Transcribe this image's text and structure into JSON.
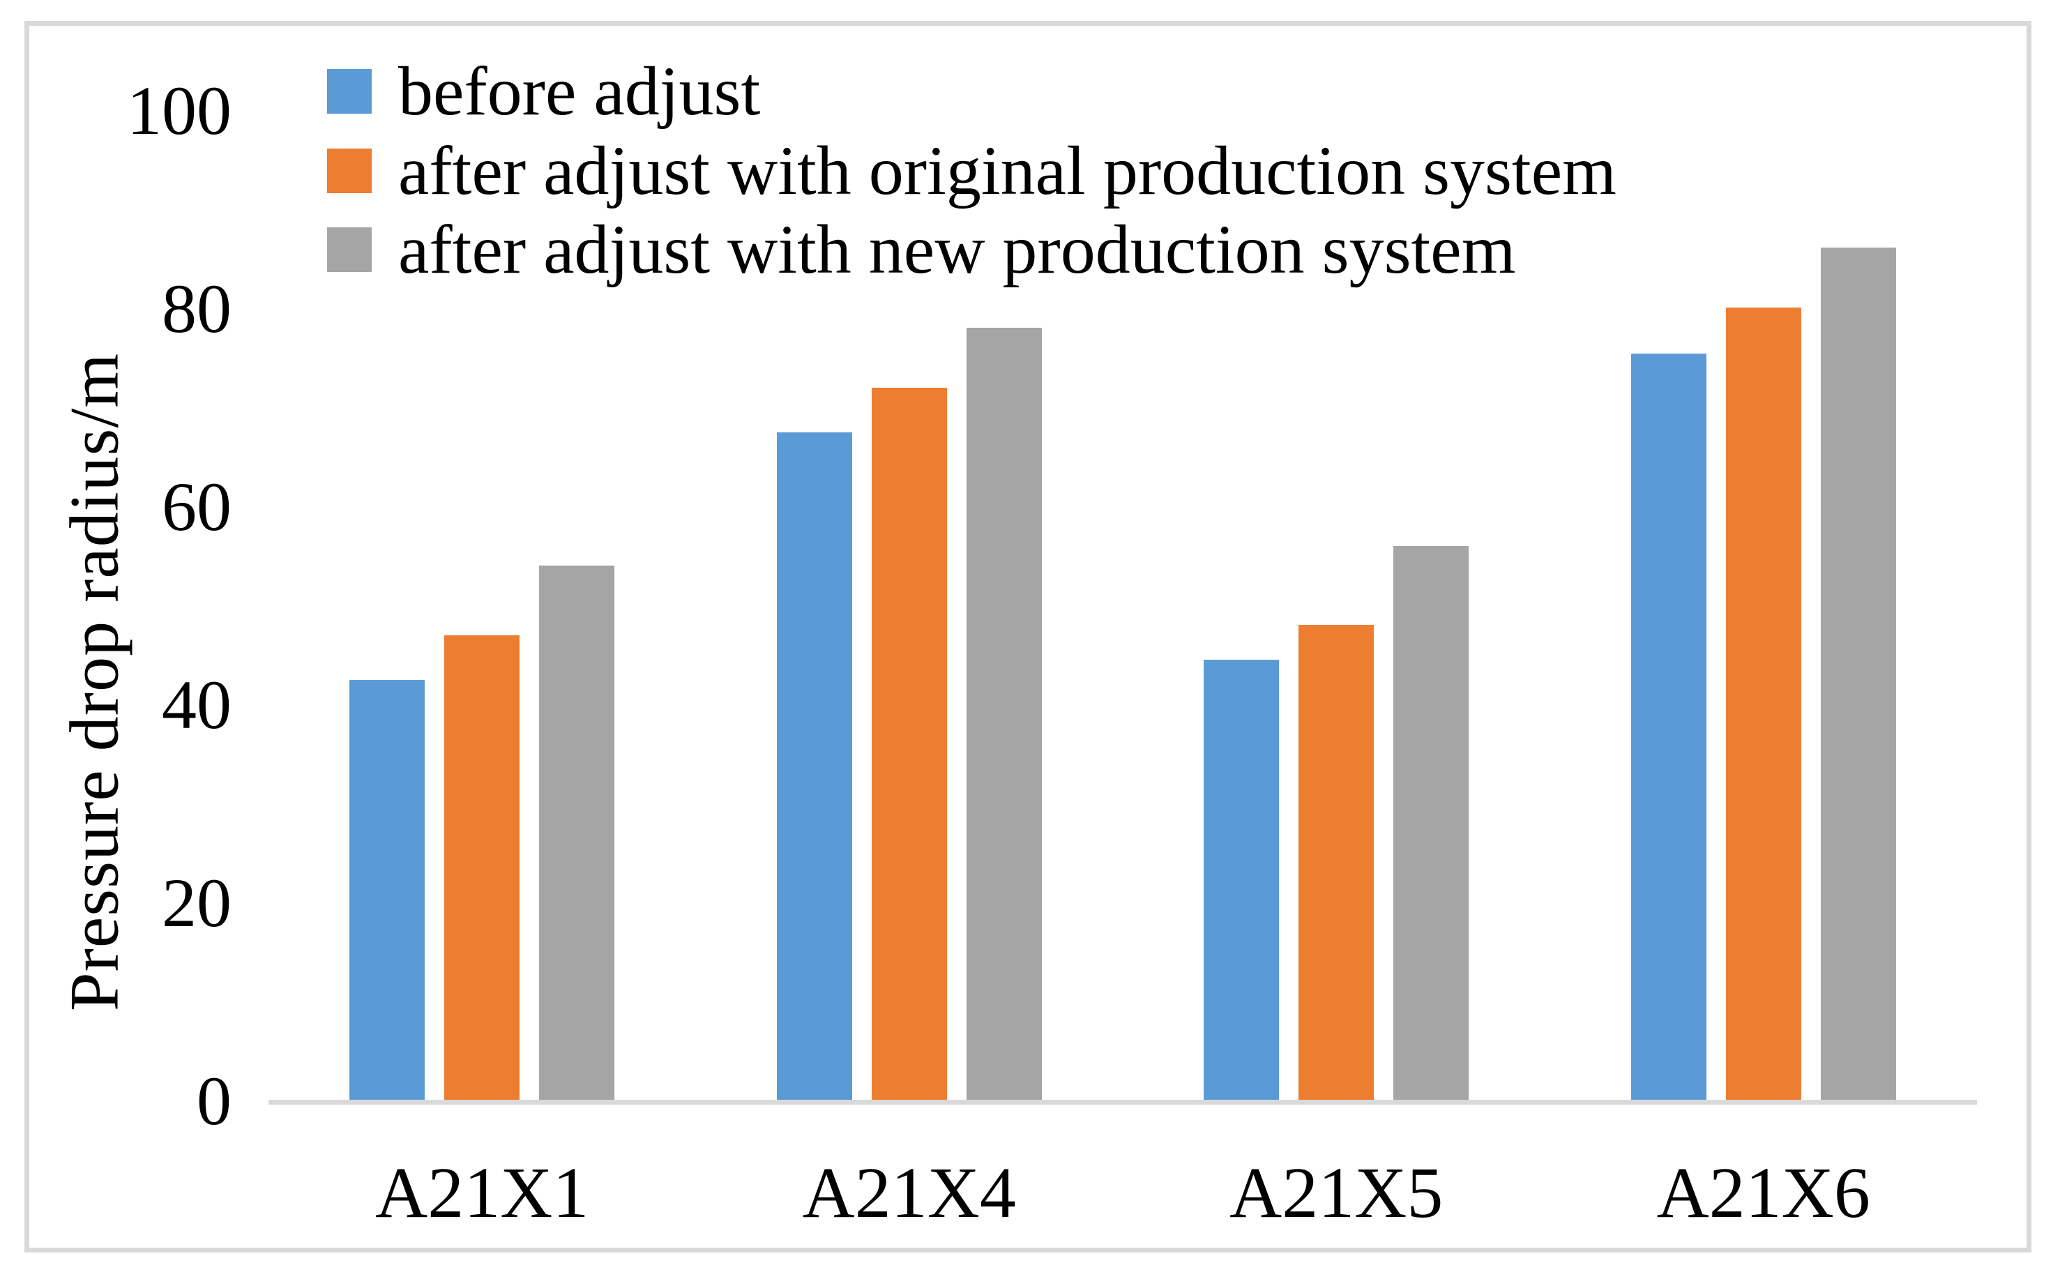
{
  "figure": {
    "background": "#ffffff",
    "border_color": "#d9d9d9",
    "axis_line_color": "#d9d9d9"
  },
  "chart_data": {
    "type": "bar",
    "title": "",
    "xlabel": "",
    "ylabel": "Pressure drop radius/m",
    "categories": [
      "A21X1",
      "A21X4",
      "A21X5",
      "A21X6"
    ],
    "series": [
      {
        "name": "before adjust",
        "color": "#5b9bd5",
        "values": [
          42.5,
          67.5,
          44.5,
          75.4
        ]
      },
      {
        "name": "after adjust with original production system",
        "color": "#ed7d31",
        "values": [
          47.0,
          72.0,
          48.0,
          80.1
        ]
      },
      {
        "name": "after adjust with new production system",
        "color": "#a5a5a5",
        "values": [
          54.0,
          78.0,
          56.0,
          86.1
        ]
      }
    ],
    "ylim": [
      0,
      100
    ],
    "yticks": [
      0,
      20,
      40,
      60,
      80,
      100
    ],
    "grid": false,
    "legend_position": "top-left"
  }
}
